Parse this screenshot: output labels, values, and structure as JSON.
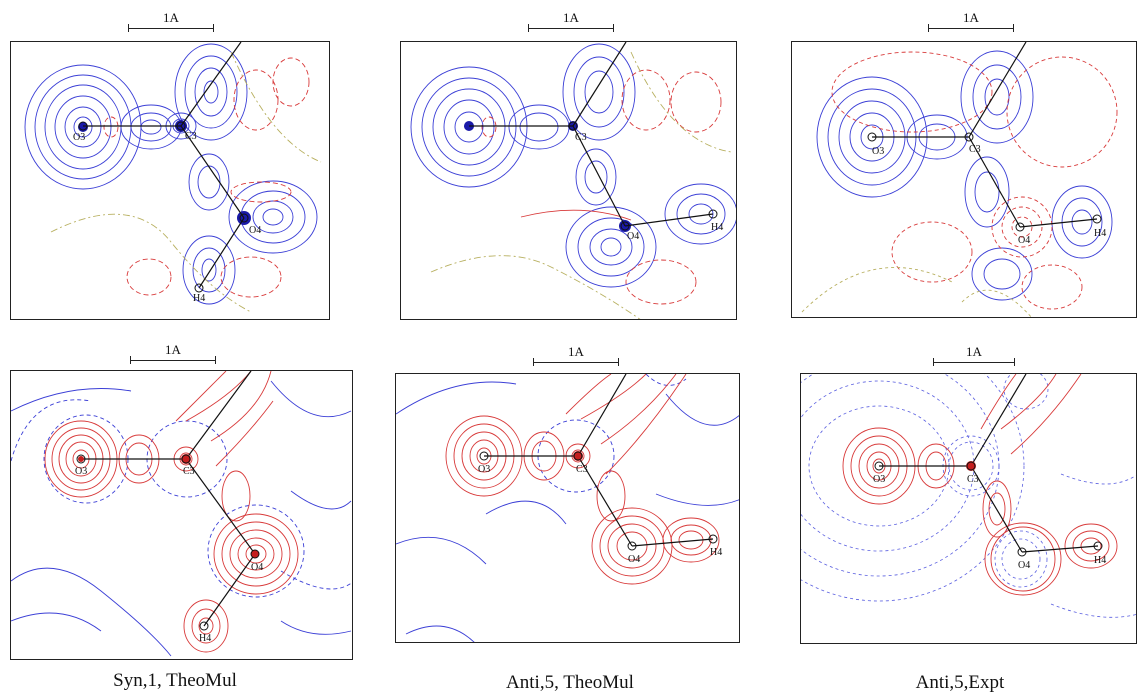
{
  "scale_label": "1A",
  "colors": {
    "positive": "#3b3fd6",
    "negative": "#d83a3a",
    "zero": "#b8b060",
    "bond": "#111111"
  },
  "panels": [
    {
      "id": "syn-theo-top",
      "atoms": [
        "C3",
        "O3",
        "O4",
        "H4"
      ]
    },
    {
      "id": "anti-theo-top",
      "atoms": [
        "C3",
        "O4",
        "H4"
      ]
    },
    {
      "id": "anti-expt-top",
      "atoms": [
        "O3",
        "C3",
        "O4",
        "H4"
      ]
    },
    {
      "id": "syn-theo-bot",
      "atoms": [
        "O3",
        "C3",
        "O4",
        "H4"
      ]
    },
    {
      "id": "anti-theo-bot",
      "atoms": [
        "O3",
        "C3",
        "O4",
        "H4"
      ]
    },
    {
      "id": "anti-expt-bot",
      "atoms": [
        "O3",
        "C3",
        "O4",
        "H4"
      ]
    }
  ],
  "captions": [
    "Syn,1, TheoMul",
    "Anti,5, TheoMul",
    "Anti,5,Expt"
  ]
}
